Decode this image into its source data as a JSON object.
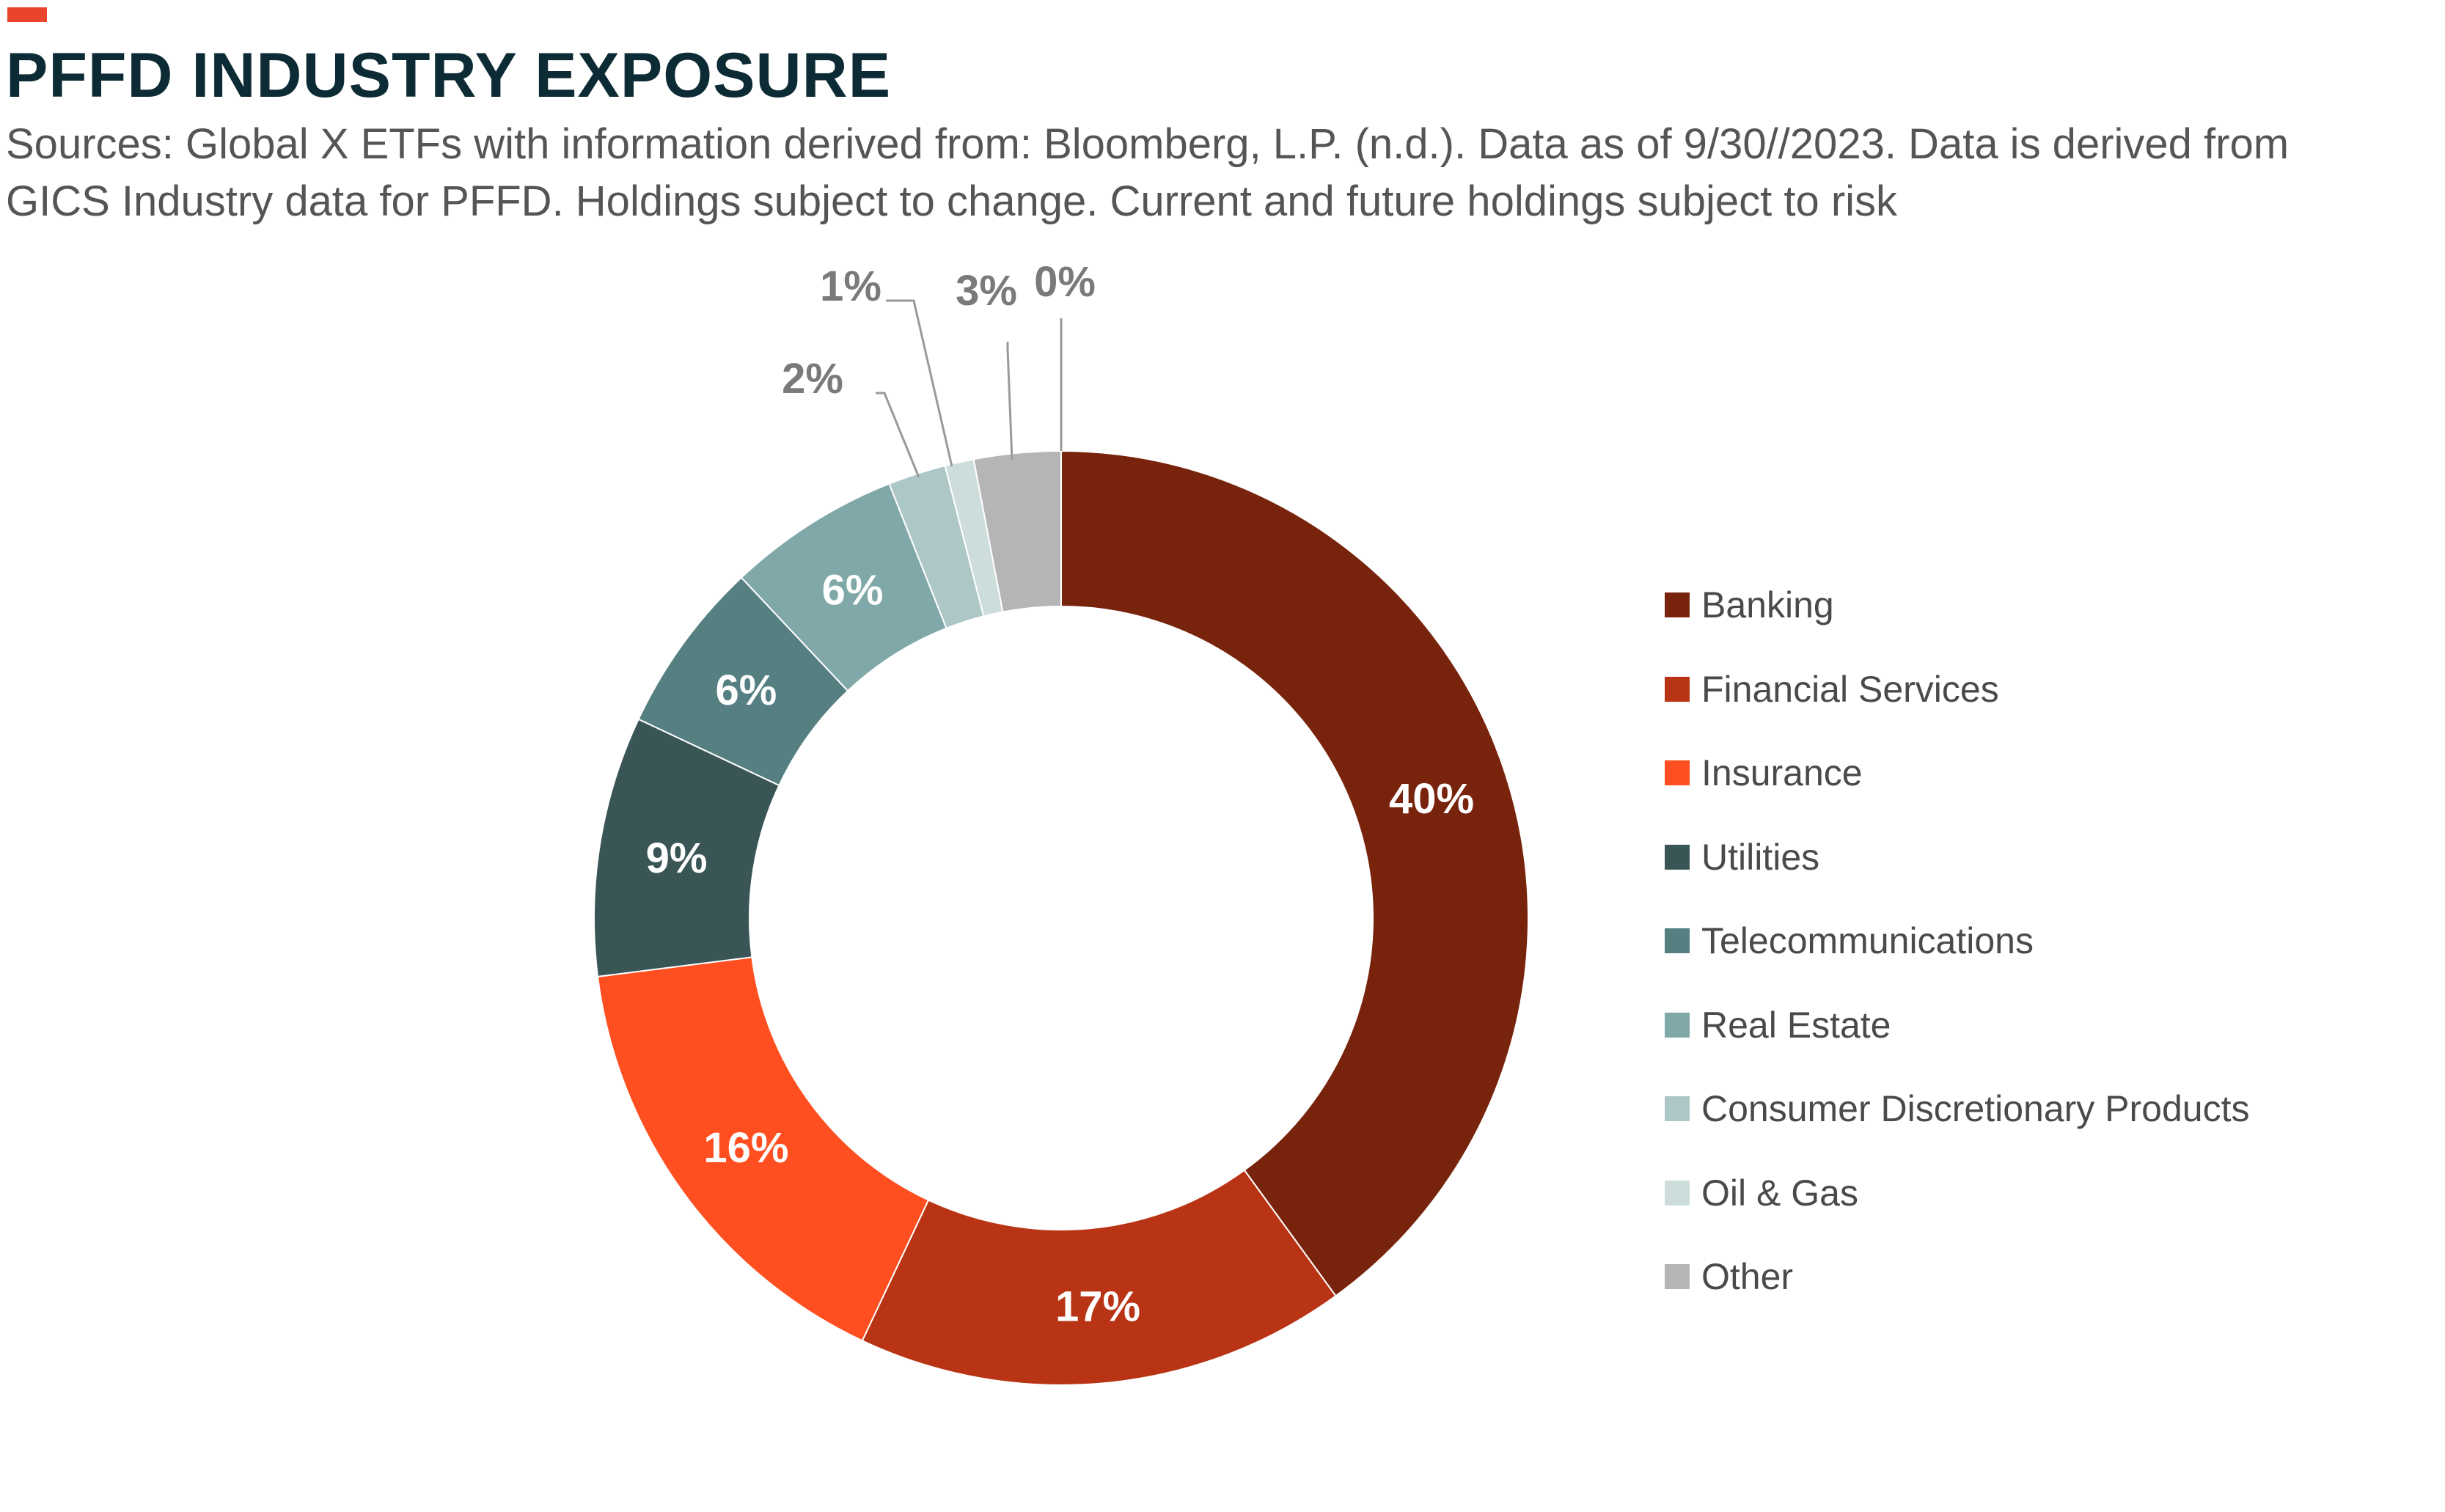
{
  "header": {
    "title": "PFFD INDUSTRY EXPOSURE",
    "subtitle_line1": "Sources: Global X ETFs with information derived from: Bloomberg, L.P. (n.d.). Data as of 9/30//2023. Data is derived from",
    "subtitle_line2": "GICS Industry data for PFFD. Holdings subject to change. Current and future holdings subject to risk",
    "accent_color": "#e8452c"
  },
  "chart_data": {
    "type": "pie",
    "variant": "donut",
    "legend_position": "right",
    "slices": [
      {
        "name": "Banking",
        "value": 40,
        "label": "40%",
        "color": "#78240d"
      },
      {
        "name": "Financial Services",
        "value": 17,
        "label": "17%",
        "color": "#b83414"
      },
      {
        "name": "Insurance",
        "value": 16,
        "label": "16%",
        "color": "#ff4e1f"
      },
      {
        "name": "Utilities",
        "value": 9,
        "label": "9%",
        "color": "#3a5556"
      },
      {
        "name": "Telecommunications",
        "value": 6,
        "label": "6%",
        "color": "#557f81"
      },
      {
        "name": "Real Estate",
        "value": 6,
        "label": "6%",
        "color": "#80a8a8"
      },
      {
        "name": "Consumer Discretionary Products",
        "value": 2,
        "label": "2%",
        "color": "#adc7c6"
      },
      {
        "name": "Oil & Gas",
        "value": 1,
        "label": "1%",
        "color": "#cddddc"
      },
      {
        "name": "Other",
        "value": 3,
        "label": "3%",
        "color": "#b5b5b5"
      },
      {
        "name": "",
        "value": 0,
        "label": "0%",
        "color": "#b5b5b5"
      }
    ]
  }
}
